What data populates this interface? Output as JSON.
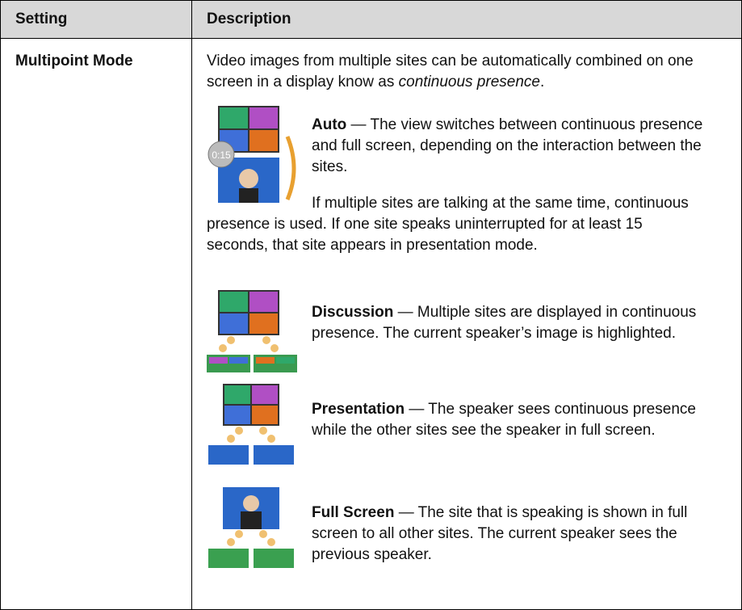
{
  "table": {
    "header": [
      "Setting",
      "Description"
    ],
    "rows": [
      {
        "setting": "Multipoint Mode",
        "intro": [
          "Video images from multiple sites can be automatically combined on one screen in a display know as ",
          "continuous presence",
          "."
        ],
        "modes": [
          {
            "name": "Auto",
            "text": " — The view switches between continuous presence and full screen, depending on the interaction between the sites.",
            "note": "If multiple sites are talking at the same time, continuous presence is used. If one site speaks uninterrupted for at least 15 seconds, that site appears in presentation mode."
          },
          {
            "name": "Discussion",
            "text": " — Multiple sites are displayed in continuous presence. The current speaker’s image is highlighted."
          },
          {
            "name": "Presentation",
            "text": " — The speaker sees continuous presence while the other sites see the speaker in full screen."
          },
          {
            "name": "Full Screen",
            "text": " — The site that is speaking is shown in full screen to all other sites. The current speaker sees the previous speaker."
          }
        ]
      }
    ]
  }
}
